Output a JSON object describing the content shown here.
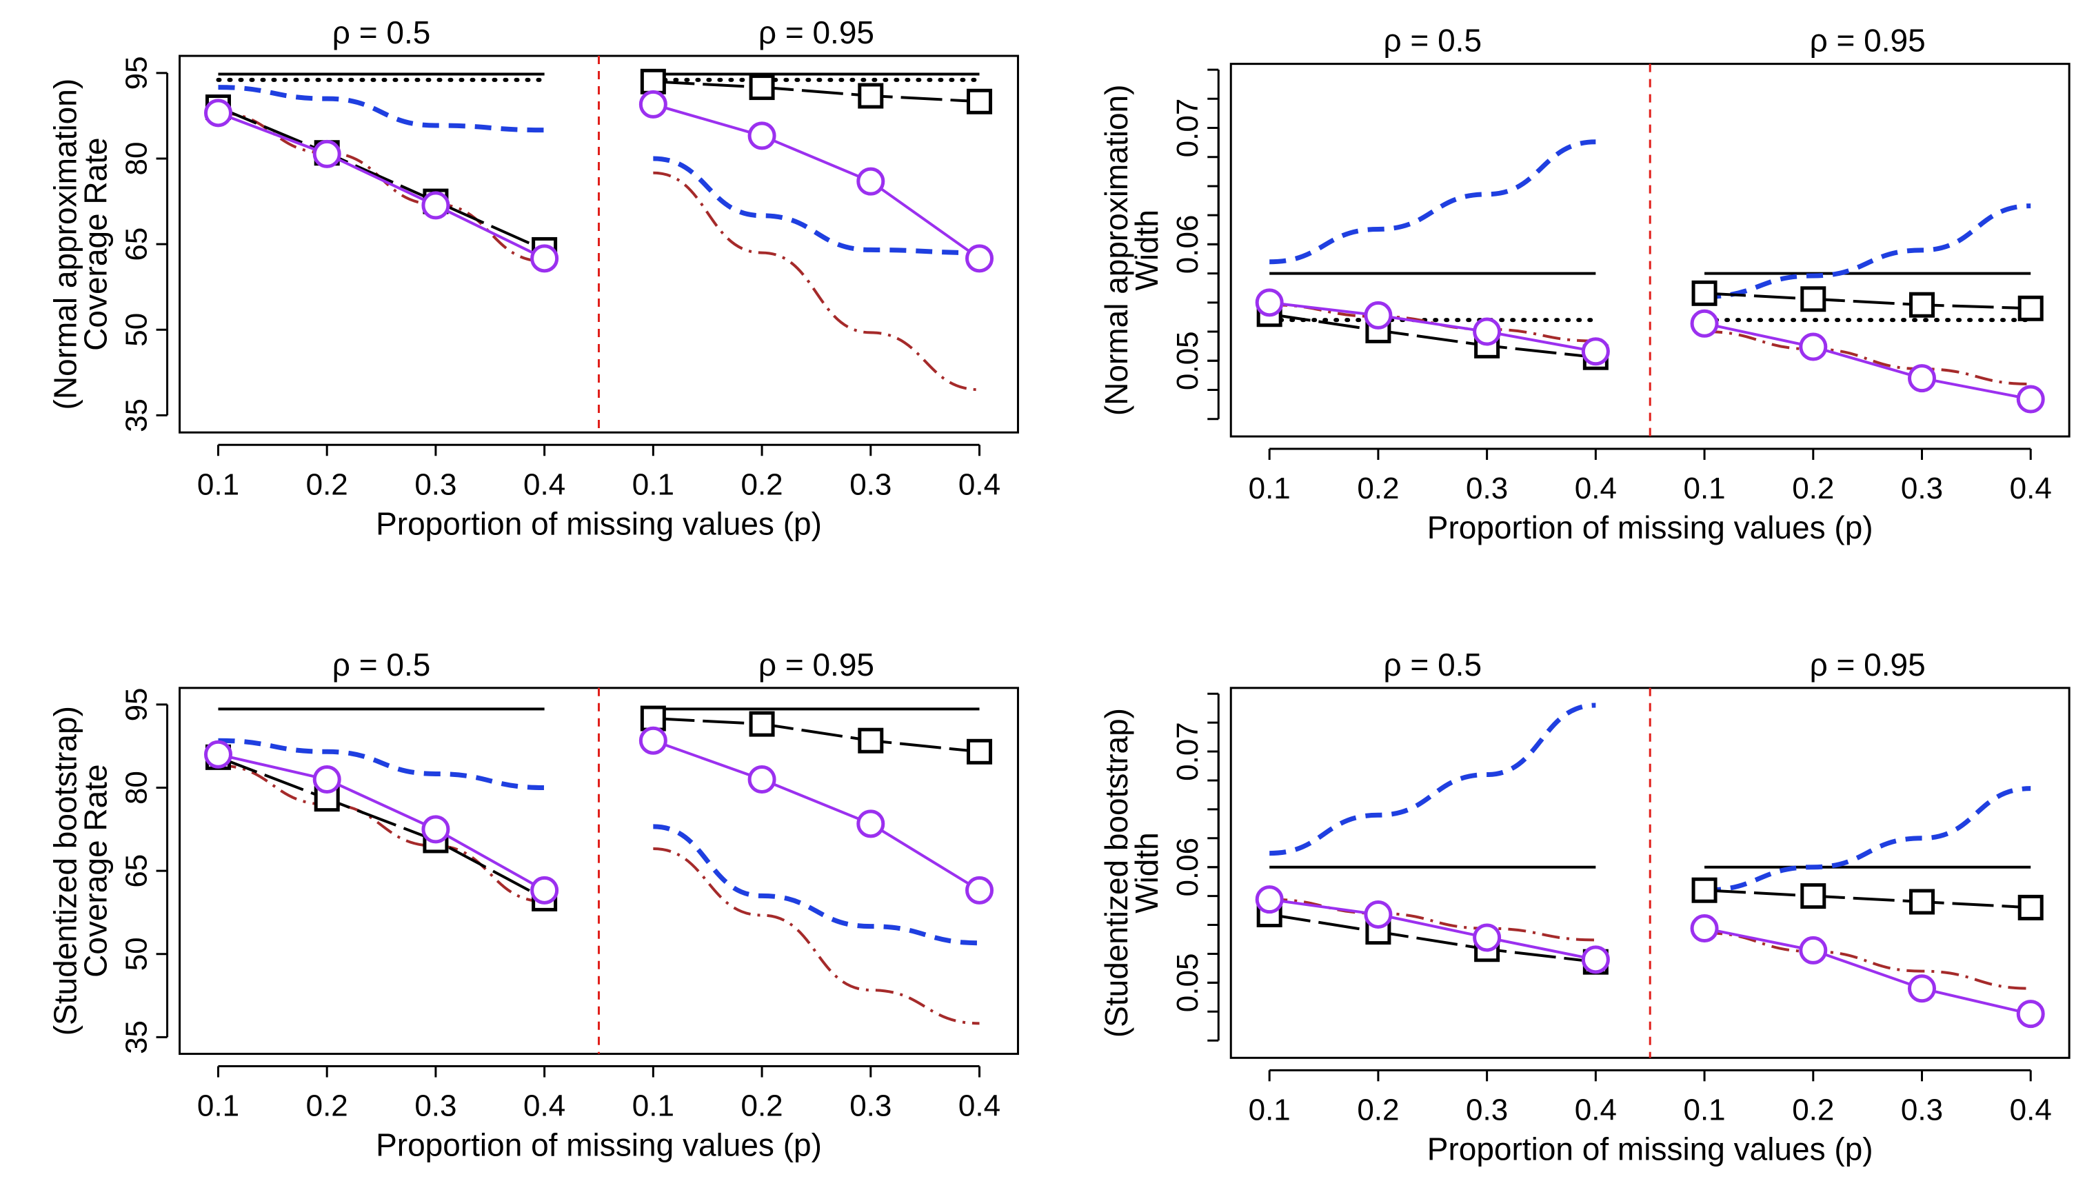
{
  "chart_data": [
    {
      "type": "line",
      "panel": "top-left",
      "method": "(Normal approximation)",
      "ylabel": "Coverage Rate",
      "xlabel": "Proportion of missing values (p)",
      "ylim": [
        32,
        98
      ],
      "yticks": [
        35,
        50,
        65,
        80,
        95
      ],
      "groups": [
        "ρ = 0.5",
        "ρ = 0.95"
      ],
      "x": [
        0.1,
        0.2,
        0.3,
        0.4
      ],
      "series": [
        {
          "name": "black-solid",
          "style": "solid",
          "color": "#000000",
          "values": [
            [
              94.8,
              94.8,
              94.8,
              94.8
            ],
            [
              94.8,
              94.8,
              94.8,
              94.8
            ]
          ]
        },
        {
          "name": "black-dotted",
          "style": "dotted",
          "color": "#000000",
          "values": [
            [
              93.8,
              93.8,
              93.8,
              93.8
            ],
            [
              93.8,
              93.8,
              93.8,
              93.8
            ]
          ]
        },
        {
          "name": "blue-dashed",
          "style": "dashed",
          "color": "#1f3fe0",
          "values": [
            [
              92.5,
              90.5,
              85.8,
              85.0
            ],
            [
              80.0,
              70.0,
              64.0,
              63.5
            ]
          ]
        },
        {
          "name": "brown-dashdot",
          "style": "dashdot",
          "color": "#a52a2a",
          "values": [
            [
              88.0,
              81.0,
              72.0,
              62.0
            ],
            [
              77.5,
              63.5,
              49.5,
              39.5
            ]
          ]
        },
        {
          "name": "black-squares",
          "style": "longdash",
          "color": "#000000",
          "marker": "square",
          "values": [
            [
              89.0,
              81.0,
              72.5,
              64.0
            ],
            [
              93.5,
              92.5,
              91.0,
              90.0
            ]
          ]
        },
        {
          "name": "purple-circles",
          "style": "solid",
          "color": "#9b30ef",
          "marker": "circle",
          "values": [
            [
              88.0,
              80.8,
              71.8,
              62.5
            ],
            [
              89.5,
              84.0,
              76.0,
              62.5
            ]
          ]
        }
      ]
    },
    {
      "type": "line",
      "panel": "top-right",
      "method": "(Normal approximation)",
      "ylabel": "Width",
      "xlabel": "Proportion of missing values (p)",
      "ylim": [
        0.0435,
        0.0755
      ],
      "yticks": [
        0.05,
        0.06,
        0.07
      ],
      "groups": [
        "ρ = 0.5",
        "ρ = 0.95"
      ],
      "x": [
        0.1,
        0.2,
        0.3,
        0.4
      ],
      "series": [
        {
          "name": "black-solid",
          "style": "solid",
          "color": "#000000",
          "values": [
            [
              0.0575,
              0.0575,
              0.0575,
              0.0575
            ],
            [
              0.0575,
              0.0575,
              0.0575,
              0.0575
            ]
          ]
        },
        {
          "name": "black-dotted",
          "style": "dotted",
          "color": "#000000",
          "values": [
            [
              0.0535,
              0.0535,
              0.0535,
              0.0535
            ],
            [
              0.0535,
              0.0535,
              0.0535,
              0.0535
            ]
          ]
        },
        {
          "name": "blue-dashed",
          "style": "dashed",
          "color": "#1f3fe0",
          "values": [
            [
              0.0585,
              0.0613,
              0.0643,
              0.0688
            ],
            [
              0.0555,
              0.0573,
              0.0595,
              0.0633
            ]
          ]
        },
        {
          "name": "brown-dashdot",
          "style": "dashdot",
          "color": "#a52a2a",
          "values": [
            [
              0.0548,
              0.0538,
              0.0527,
              0.0517
            ],
            [
              0.0525,
              0.051,
              0.0493,
              0.048
            ]
          ]
        },
        {
          "name": "black-squares",
          "style": "longdash",
          "color": "#000000",
          "marker": "square",
          "values": [
            [
              0.054,
              0.0526,
              0.0513,
              0.0503
            ],
            [
              0.0558,
              0.0553,
              0.0548,
              0.0545
            ]
          ]
        },
        {
          "name": "purple-circles",
          "style": "solid",
          "color": "#9b30ef",
          "marker": "circle",
          "values": [
            [
              0.055,
              0.0539,
              0.0525,
              0.0508
            ],
            [
              0.0532,
              0.0512,
              0.0485,
              0.0467
            ]
          ]
        }
      ]
    },
    {
      "type": "line",
      "panel": "bottom-left",
      "method": "(Studentized bootstrap)",
      "ylabel": "Coverage Rate",
      "xlabel": "Proportion of missing values (p)",
      "ylim": [
        32,
        98
      ],
      "yticks": [
        35,
        50,
        65,
        80,
        95
      ],
      "groups": [
        "ρ = 0.5",
        "ρ = 0.95"
      ],
      "x": [
        0.1,
        0.2,
        0.3,
        0.4
      ],
      "series": [
        {
          "name": "black-solid",
          "style": "solid",
          "color": "#000000",
          "values": [
            [
              94.2,
              94.2,
              94.2,
              94.2
            ],
            [
              94.2,
              94.2,
              94.2,
              94.2
            ]
          ]
        },
        {
          "name": "blue-dashed",
          "style": "dashed",
          "color": "#1f3fe0",
          "values": [
            [
              88.5,
              86.5,
              82.5,
              80.0
            ],
            [
              73.0,
              60.5,
              55.0,
              52.0
            ]
          ]
        },
        {
          "name": "brown-dashdot",
          "style": "dashdot",
          "color": "#a52a2a",
          "values": [
            [
              84.0,
              77.0,
              69.5,
              59.5
            ],
            [
              69.0,
              57.0,
              43.5,
              37.5
            ]
          ]
        },
        {
          "name": "black-squares",
          "style": "longdash",
          "color": "#000000",
          "marker": "square",
          "values": [
            [
              85.5,
              78.0,
              70.5,
              60.0
            ],
            [
              92.5,
              91.5,
              88.5,
              86.5
            ]
          ]
        },
        {
          "name": "purple-circles",
          "style": "solid",
          "color": "#9b30ef",
          "marker": "circle",
          "values": [
            [
              86.0,
              81.5,
              72.5,
              61.5
            ],
            [
              88.5,
              81.5,
              73.5,
              61.5
            ]
          ]
        }
      ]
    },
    {
      "type": "line",
      "panel": "bottom-right",
      "method": "(Studentized bootstrap)",
      "ylabel": "Width",
      "xlabel": "Proportion of missing values (p)",
      "ylim": [
        0.0435,
        0.0755
      ],
      "yticks": [
        0.05,
        0.06,
        0.07
      ],
      "groups": [
        "ρ = 0.5",
        "ρ = 0.95"
      ],
      "x": [
        0.1,
        0.2,
        0.3,
        0.4
      ],
      "series": [
        {
          "name": "black-solid",
          "style": "solid",
          "color": "#000000",
          "values": [
            [
              0.06,
              0.06,
              0.06,
              0.06
            ],
            [
              0.06,
              0.06,
              0.06,
              0.06
            ]
          ]
        },
        {
          "name": "blue-dashed",
          "style": "dashed",
          "color": "#1f3fe0",
          "values": [
            [
              0.0612,
              0.0645,
              0.068,
              0.074
            ],
            [
              0.058,
              0.06,
              0.0625,
              0.0668
            ]
          ]
        },
        {
          "name": "brown-dashdot",
          "style": "dashdot",
          "color": "#a52a2a",
          "values": [
            [
              0.0572,
              0.056,
              0.0547,
              0.0537
            ],
            [
              0.0543,
              0.0527,
              0.051,
              0.0495
            ]
          ]
        },
        {
          "name": "black-squares",
          "style": "longdash",
          "color": "#000000",
          "marker": "square",
          "values": [
            [
              0.0559,
              0.0544,
              0.0529,
              0.0518
            ],
            [
              0.058,
              0.0575,
              0.057,
              0.0565
            ]
          ]
        },
        {
          "name": "purple-circles",
          "style": "solid",
          "color": "#9b30ef",
          "marker": "circle",
          "values": [
            [
              0.0572,
              0.0559,
              0.0539,
              0.052
            ],
            [
              0.0547,
              0.0528,
              0.0495,
              0.0473
            ]
          ]
        }
      ]
    }
  ]
}
